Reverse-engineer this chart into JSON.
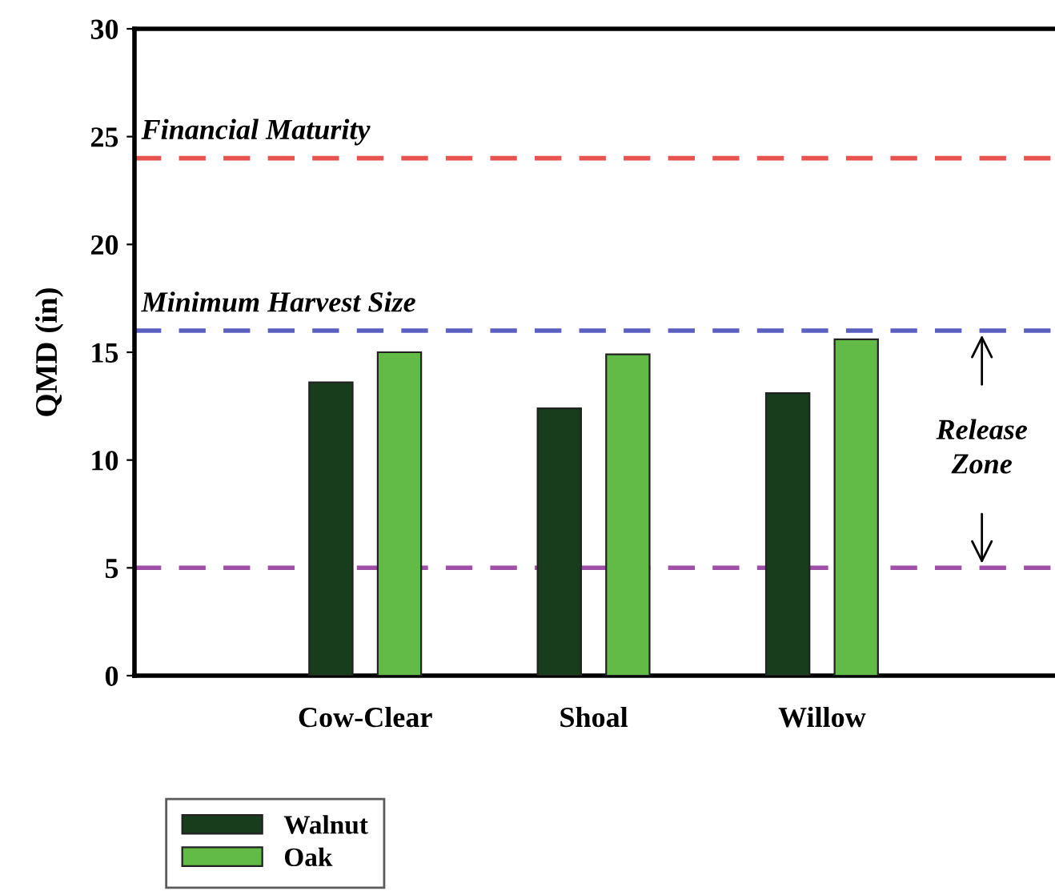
{
  "chart_data": {
    "type": "bar",
    "ylabel": "QMD (in)",
    "categories": [
      "Cow-Clear",
      "Shoal",
      "Willow"
    ],
    "series": [
      {
        "name": "Walnut",
        "color": "#173d1c",
        "values": [
          13.6,
          12.4,
          13.1
        ]
      },
      {
        "name": "Oak",
        "color": "#62bb46",
        "values": [
          15.0,
          14.9,
          15.6
        ]
      }
    ],
    "ylim": [
      0,
      30
    ],
    "yticks": [
      0,
      5,
      10,
      15,
      20,
      25,
      30
    ],
    "grid": false,
    "legend": "bottom left",
    "ref_lines": [
      {
        "axis": "y",
        "value": 24,
        "label": "Financial Maturity",
        "color": "#e8534f",
        "line_style": "dashed"
      },
      {
        "axis": "y",
        "value": 16,
        "label": "Minimum Harvest Size",
        "color": "#5b5fc0",
        "line_style": "dashed"
      },
      {
        "axis": "y",
        "value": 5,
        "label": null,
        "color": "#a04fa8",
        "line_style": "dashed"
      }
    ],
    "annotations": [
      "Release\nZone"
    ]
  }
}
